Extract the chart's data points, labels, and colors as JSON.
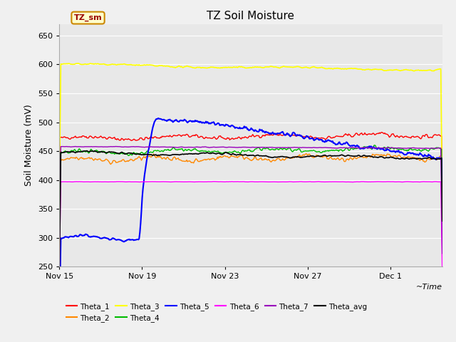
{
  "title": "TZ Soil Moisture",
  "ylabel": "Soil Moisture (mV)",
  "xlabel": "~Time",
  "ylim": [
    250,
    670
  ],
  "yticks": [
    250,
    300,
    350,
    400,
    450,
    500,
    550,
    600,
    650
  ],
  "plot_bg_color": "#e8e8e8",
  "fig_bg_color": "#f0f0f0",
  "legend_label": "TZ_sm",
  "xtick_labels": [
    "Nov 15",
    "Nov 19",
    "Nov 23",
    "Nov 27",
    "Dec 1"
  ],
  "xtick_positions": [
    0,
    4,
    8,
    12,
    16
  ],
  "xlim": [
    0,
    18.5
  ],
  "title_fontsize": 11,
  "tick_fontsize": 8,
  "label_fontsize": 9
}
